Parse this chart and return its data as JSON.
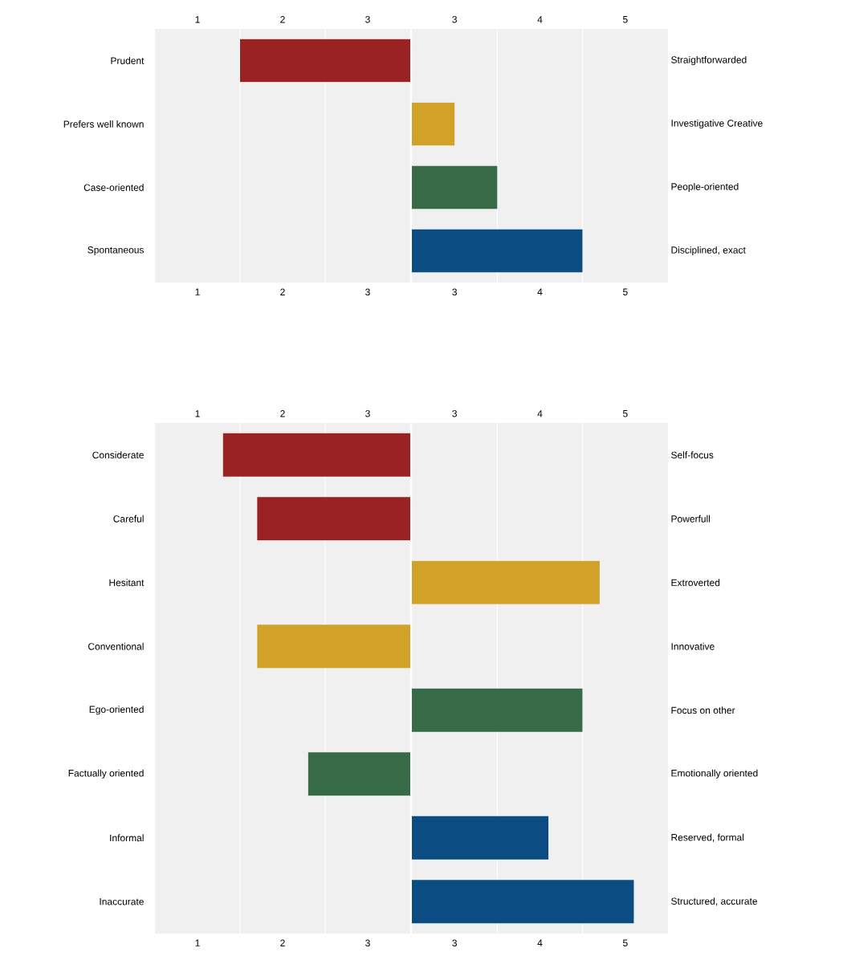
{
  "chart_data": [
    {
      "type": "bar",
      "orientation": "horizontal",
      "categories": [
        "Prudent",
        "Prefers well known",
        "Case-oriented",
        "Spontaneous"
      ],
      "base": [
        3.5,
        null,
        null,
        null
      ],
      "values": [
        -2.0,
        null,
        null,
        null
      ],
      "colors": [
        "#9b2222",
        null,
        null,
        null
      ],
      "xlim": [
        0.5,
        3.5
      ],
      "xticks": [
        1,
        2,
        3
      ],
      "x2lim": [
        0.5,
        3.5
      ],
      "x2ticks": [
        1,
        2,
        3
      ],
      "ref_lines": [
        {
          "axis": "x",
          "value": 1.5,
          "color": "#ffffff"
        },
        {
          "axis": "x",
          "value": 2.5,
          "color": "#ffffff"
        }
      ]
    },
    {
      "type": "bar",
      "orientation": "horizontal",
      "categories": [
        "Straightforwarded",
        "Investigative Creative",
        "People-oriented",
        "Disciplined, exact"
      ],
      "base": [
        null,
        2.5,
        2.5,
        2.5
      ],
      "values": [
        null,
        0.5,
        1.0,
        2.0
      ],
      "colors": [
        null,
        "#d1a128",
        "#376b48",
        "#0b4d82"
      ],
      "xlim": [
        2.5,
        5.5
      ],
      "xticks": [
        3,
        4,
        5
      ],
      "x2lim": [
        2.5,
        5.5
      ],
      "x2ticks": [
        3,
        4,
        5
      ],
      "ref_lines": [
        {
          "axis": "x",
          "value": 3.5,
          "color": "#ffffff"
        },
        {
          "axis": "x",
          "value": 4.5,
          "color": "#ffffff"
        }
      ]
    },
    {
      "type": "bar",
      "orientation": "horizontal",
      "categories": [
        "Considerate",
        "Careful",
        "Hesitant",
        "Conventional",
        "Ego-oriented",
        "Factually oriented",
        "Informal",
        "Inaccurate"
      ],
      "base": [
        3.5,
        3.5,
        null,
        3.5,
        null,
        3.5,
        null,
        null
      ],
      "values": [
        -2.2,
        -1.8,
        null,
        -1.8,
        null,
        -1.2,
        null,
        null
      ],
      "colors": [
        "#9b2222",
        "#9b2222",
        null,
        "#d1a128",
        null,
        "#376b48",
        null,
        null
      ],
      "xlim": [
        0.5,
        3.5
      ],
      "xticks": [
        1,
        2,
        3
      ],
      "x2lim": [
        0.5,
        3.5
      ],
      "x2ticks": [
        1,
        2,
        3
      ],
      "ref_lines": [
        {
          "axis": "x",
          "value": 1.5,
          "color": "#ffffff"
        },
        {
          "axis": "x",
          "value": 2.5,
          "color": "#ffffff"
        }
      ]
    },
    {
      "type": "bar",
      "orientation": "horizontal",
      "categories": [
        "Self-focus",
        "Powerfull",
        "Extroverted",
        "Innovative",
        "Focus on other",
        "Emotionally oriented",
        "Reserved, formal",
        "Structured, accurate"
      ],
      "base": [
        null,
        null,
        2.5,
        null,
        2.5,
        null,
        2.5,
        2.5
      ],
      "values": [
        null,
        null,
        2.2,
        null,
        2.0,
        null,
        1.6,
        2.6
      ],
      "colors": [
        null,
        null,
        "#d1a128",
        null,
        "#376b48",
        null,
        "#0b4d82",
        "#0b4d82"
      ],
      "xlim": [
        2.5,
        5.5
      ],
      "xticks": [
        3,
        4,
        5
      ],
      "x2lim": [
        2.5,
        5.5
      ],
      "x2ticks": [
        3,
        4,
        5
      ],
      "ref_lines": [
        {
          "axis": "x",
          "value": 3.5,
          "color": "#ffffff"
        },
        {
          "axis": "x",
          "value": 4.5,
          "color": "#ffffff"
        }
      ]
    }
  ]
}
